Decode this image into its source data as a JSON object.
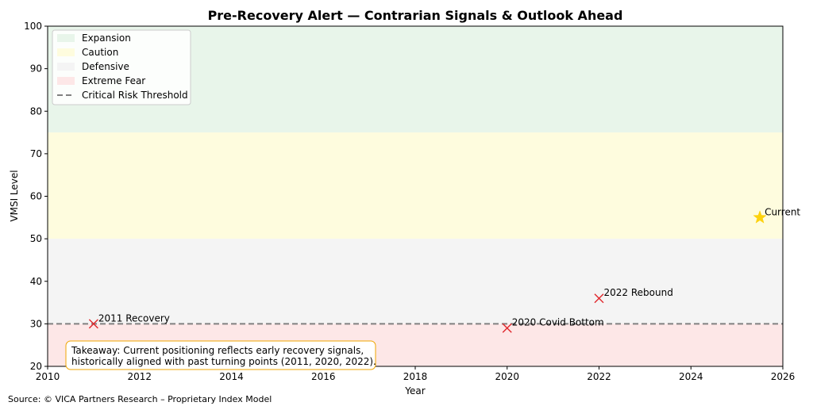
{
  "chart_data": {
    "type": "scatter",
    "title": "Pre-Recovery Alert — Contrarian Signals & Outlook Ahead",
    "xlabel": "Year",
    "ylabel": "VMSI Level",
    "xlim": [
      2010,
      2026
    ],
    "ylim": [
      20,
      100
    ],
    "xticks": [
      2010,
      2012,
      2014,
      2016,
      2018,
      2020,
      2022,
      2024,
      2026
    ],
    "yticks": [
      20,
      30,
      40,
      50,
      60,
      70,
      80,
      90,
      100
    ],
    "grid": false,
    "legend_position": "top-left",
    "bands": [
      {
        "name": "Expansion",
        "from": 75,
        "to": 100,
        "color": "#e8f5ea"
      },
      {
        "name": "Caution",
        "from": 50,
        "to": 75,
        "color": "#fefcde"
      },
      {
        "name": "Defensive",
        "from": 30,
        "to": 50,
        "color": "#f4f4f4"
      },
      {
        "name": "Extreme Fear",
        "from": 20,
        "to": 30,
        "color": "#fde7e7"
      }
    ],
    "threshold": {
      "name": "Critical Risk Threshold",
      "value": 30,
      "color": "#808080"
    },
    "signal_points": [
      {
        "x": 2011,
        "y": 30,
        "label": "2011 Recovery"
      },
      {
        "x": 2020,
        "y": 29,
        "label": "2020 Covid Bottom"
      },
      {
        "x": 2022,
        "y": 36,
        "label": "2022 Rebound"
      }
    ],
    "signal_color": "#e0262b",
    "current_point": {
      "x": 2025.5,
      "y": 55,
      "label": "Current",
      "color": "#fdd20e"
    },
    "annotation": {
      "lines": [
        "Takeaway: Current positioning reflects early recovery signals,",
        "historically aligned with past turning points (2011, 2020, 2022)."
      ],
      "border_color": "#f0a500"
    }
  },
  "footer": {
    "source": "Source: © VICA Partners Research – Proprietary Index Model"
  }
}
